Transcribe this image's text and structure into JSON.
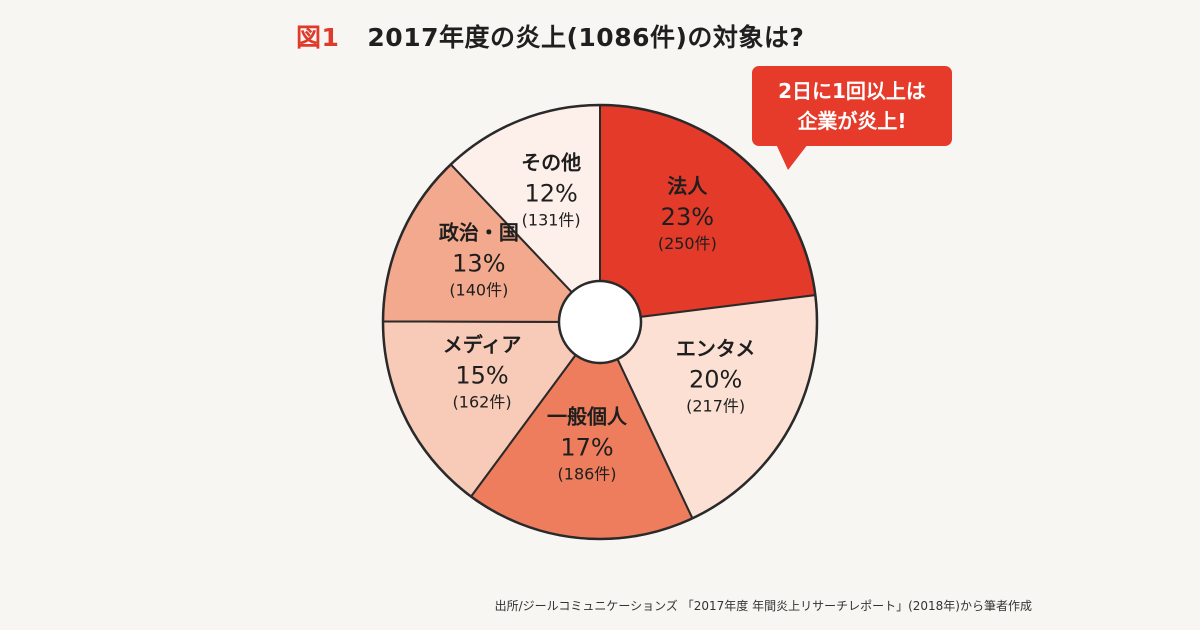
{
  "header": {
    "figure_label": "図1",
    "title": "2017年度の炎上(1086件)の対象は?"
  },
  "callout": {
    "line1": "2日に1回以上は",
    "line2": "企業が炎上!"
  },
  "source": "出所/ジールコミュニケーションズ 「2017年度 年間炎上リサーチレポート」(2018年)から筆者作成",
  "chart_data": {
    "type": "pie",
    "style": "donut",
    "start": "top",
    "direction": "clockwise",
    "total": 1086,
    "slices": [
      {
        "label": "法人",
        "percent": "23%",
        "value": 250,
        "count_label": "(250件)",
        "color": "#e43a2a"
      },
      {
        "label": "エンタメ",
        "percent": "20%",
        "value": 217,
        "count_label": "(217件)",
        "color": "#fbe0d3"
      },
      {
        "label": "一般個人",
        "percent": "17%",
        "value": 186,
        "count_label": "(186件)",
        "color": "#ee7d5d"
      },
      {
        "label": "メディア",
        "percent": "15%",
        "value": 162,
        "count_label": "(162件)",
        "color": "#f8cbb8"
      },
      {
        "label": "政治・国",
        "percent": "13%",
        "value": 140,
        "count_label": "(140件)",
        "color": "#f3a98d"
      },
      {
        "label": "その他",
        "percent": "12%",
        "value": 131,
        "count_label": "(131件)",
        "color": "#fdf0ea"
      }
    ]
  }
}
